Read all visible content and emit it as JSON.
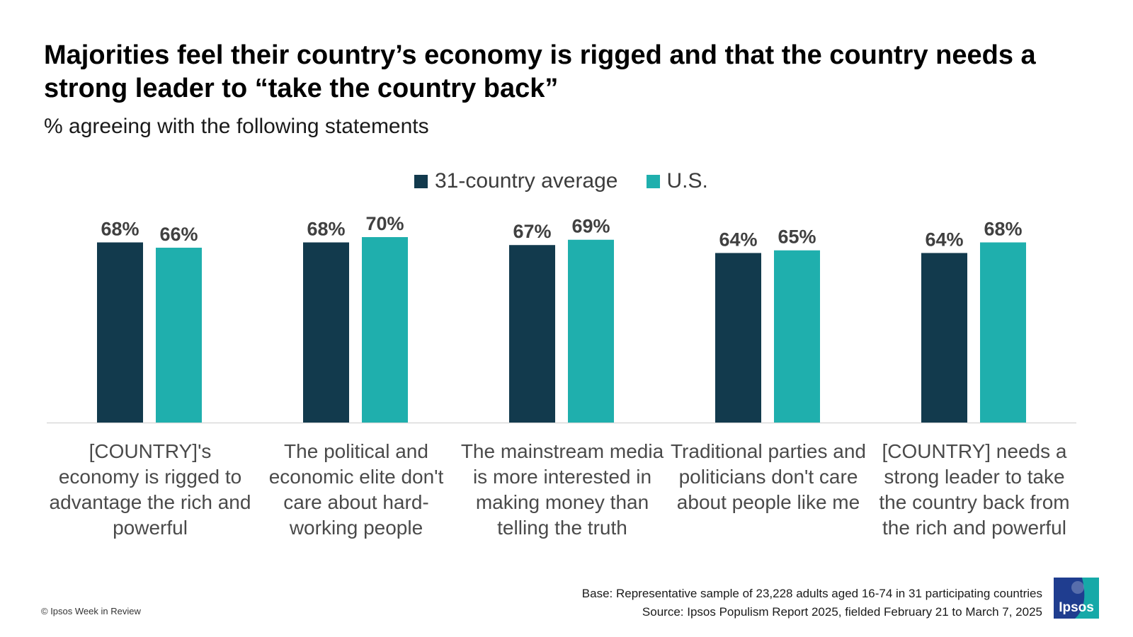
{
  "title": "Majorities feel their country’s economy is rigged and that the country needs a strong leader to “take the country back”",
  "subtitle": "% agreeing with the following statements",
  "chart_data": {
    "type": "bar",
    "categories": [
      "[COUNTRY]'s economy is rigged to advantage the rich and powerful",
      "The political and economic elite don't care about hard-working people",
      "The mainstream media is more interested in making money than telling the truth",
      "Traditional parties and politicians don't care about people like me",
      "[COUNTRY] needs a strong leader to take the country back from the rich and powerful"
    ],
    "series": [
      {
        "name": "31-country average",
        "color": "#123a4d",
        "values": [
          68,
          68,
          67,
          64,
          64
        ]
      },
      {
        "name": "U.S.",
        "color": "#1fafad",
        "values": [
          66,
          70,
          69,
          65,
          68
        ]
      }
    ],
    "value_labels": [
      [
        "68%",
        "68%",
        "67%",
        "64%",
        "64%"
      ],
      [
        "66%",
        "70%",
        "69%",
        "65%",
        "68%"
      ]
    ],
    "ylim": [
      0,
      100
    ],
    "legend": "top-center",
    "grid": false
  },
  "footer": {
    "base": "Base: Representative sample of 23,228 adults aged 16-74 in 31 participating countries",
    "source": "Source: Ipsos Populism Report 2025, fielded February 21 to March 7, 2025",
    "copyright": "© Ipsos Week in Review",
    "logo_text": "Ipsos"
  }
}
